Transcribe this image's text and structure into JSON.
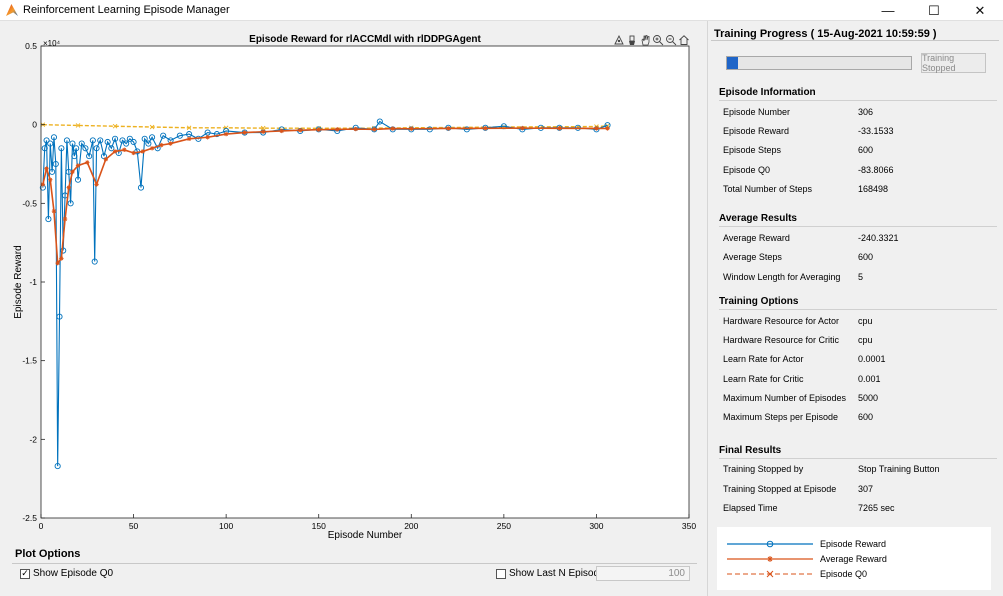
{
  "window": {
    "title": "Reinforcement Learning Episode Manager",
    "controls": {
      "minimize": "—",
      "maximize": "☐",
      "close": "✕"
    }
  },
  "plot": {
    "title": "Episode Reward for rlACCMdl with rlDDPGAgent",
    "exponent_label": "×10⁴",
    "xlabel": "Episode Number",
    "ylabel": "Episode Reward",
    "x_ticks": [
      "0",
      "50",
      "100",
      "150",
      "200",
      "250",
      "300",
      "350"
    ],
    "y_ticks": [
      "0.5",
      "0",
      "-0.5",
      "-1",
      "-1.5",
      "-2",
      "-2.5"
    ],
    "toolbar_icons": [
      "data-tips-icon",
      "brush-icon",
      "pan-icon",
      "zoom-in-icon",
      "zoom-out-icon",
      "home-icon"
    ],
    "colors": {
      "episode_reward": "#0072BD",
      "average_reward": "#D95319",
      "episode_q0": "#EDB120"
    }
  },
  "chart_data": {
    "type": "line",
    "title": "Episode Reward for rlACCMdl with rlDDPGAgent",
    "xlabel": "Episode Number",
    "ylabel": "Episode Reward",
    "xlim": [
      0,
      350
    ],
    "ylim": [
      -25000,
      5000
    ],
    "grid": false,
    "legend_placement": "bottom-right",
    "series": [
      {
        "name": "Episode Reward",
        "x": [
          1,
          2,
          3,
          4,
          5,
          6,
          7,
          8,
          9,
          10,
          11,
          12,
          13,
          14,
          15,
          16,
          17,
          18,
          19,
          20,
          22,
          24,
          26,
          28,
          29,
          30,
          32,
          34,
          36,
          38,
          40,
          42,
          44,
          46,
          48,
          50,
          52,
          54,
          56,
          58,
          60,
          63,
          66,
          70,
          75,
          80,
          85,
          90,
          95,
          100,
          110,
          120,
          130,
          140,
          150,
          160,
          170,
          180,
          183,
          190,
          200,
          210,
          220,
          230,
          240,
          250,
          260,
          270,
          280,
          290,
          300,
          306
        ],
        "y": [
          -4000,
          -1500,
          -1000,
          -6000,
          -1200,
          -3000,
          -800,
          -2500,
          -21700,
          -12200,
          -1500,
          -8000,
          -4500,
          -1000,
          -3000,
          -5000,
          -1200,
          -2000,
          -1500,
          -3500,
          -1200,
          -1500,
          -2000,
          -1000,
          -8700,
          -1500,
          -1000,
          -2000,
          -1100,
          -1500,
          -900,
          -1800,
          -1000,
          -1200,
          -900,
          -1100,
          -1700,
          -4000,
          -900,
          -1200,
          -800,
          -1500,
          -700,
          -1000,
          -700,
          -600,
          -900,
          -500,
          -600,
          -400,
          -500,
          -500,
          -300,
          -400,
          -300,
          -400,
          -200,
          -300,
          200,
          -300,
          -300,
          -300,
          -200,
          -300,
          -200,
          -100,
          -300,
          -200,
          -200,
          -200,
          -300,
          -33
        ]
      },
      {
        "name": "Average Reward",
        "x": [
          1,
          3,
          5,
          7,
          9,
          11,
          13,
          15,
          17,
          20,
          25,
          30,
          35,
          40,
          45,
          50,
          55,
          60,
          65,
          70,
          80,
          90,
          100,
          110,
          120,
          130,
          140,
          150,
          160,
          170,
          180,
          190,
          200,
          220,
          240,
          260,
          280,
          300,
          306
        ],
        "y": [
          -3800,
          -2800,
          -3500,
          -5500,
          -8800,
          -8500,
          -6000,
          -4000,
          -3000,
          -2600,
          -2400,
          -3800,
          -2200,
          -1700,
          -1600,
          -1800,
          -1700,
          -1500,
          -1300,
          -1200,
          -900,
          -800,
          -600,
          -500,
          -450,
          -400,
          -350,
          -320,
          -300,
          -280,
          -300,
          -250,
          -260,
          -240,
          -230,
          -220,
          -230,
          -240,
          -240
        ]
      },
      {
        "name": "Episode Q0",
        "x": [
          1,
          20,
          40,
          60,
          80,
          100,
          120,
          150,
          180,
          200,
          250,
          300,
          306
        ],
        "y": [
          0,
          -50,
          -100,
          -150,
          -200,
          -200,
          -220,
          -230,
          -220,
          -200,
          -150,
          -120,
          -84
        ]
      }
    ]
  },
  "plot_options": {
    "title": "Plot Options",
    "show_q0_label": "Show Episode Q0",
    "show_q0_checked": true,
    "show_last_n_label": "Show Last N Episodes",
    "show_last_n_checked": false,
    "last_n_value": "100"
  },
  "progress": {
    "title": "Training Progress ( 15-Aug-2021 10:59:59 )",
    "fraction": 0.0614,
    "button_label": "Training Stopped"
  },
  "episode_info": {
    "title": "Episode Information",
    "rows": [
      {
        "label": "Episode Number",
        "value": "306"
      },
      {
        "label": "Episode Reward",
        "value": "-33.1533"
      },
      {
        "label": "Episode Steps",
        "value": "600"
      },
      {
        "label": "Episode Q0",
        "value": "-83.8066"
      },
      {
        "label": "Total Number of Steps",
        "value": "168498"
      }
    ]
  },
  "average_results": {
    "title": "Average Results",
    "rows": [
      {
        "label": "Average Reward",
        "value": "-240.3321"
      },
      {
        "label": "Average Steps",
        "value": "600"
      },
      {
        "label": "Window Length for Averaging",
        "value": "5"
      }
    ]
  },
  "training_options": {
    "title": "Training Options",
    "rows": [
      {
        "label": "Hardware Resource for Actor",
        "value": "cpu"
      },
      {
        "label": "Hardware Resource for Critic",
        "value": "cpu"
      },
      {
        "label": "Learn Rate for Actor",
        "value": "0.0001"
      },
      {
        "label": "Learn Rate for Critic",
        "value": "0.001"
      },
      {
        "label": "Maximum Number of Episodes",
        "value": "5000"
      },
      {
        "label": "Maximum Steps per Episode",
        "value": "600"
      }
    ]
  },
  "final_results": {
    "title": "Final Results",
    "rows": [
      {
        "label": "Training Stopped by",
        "value": "Stop Training Button"
      },
      {
        "label": "Training Stopped at Episode",
        "value": "307"
      },
      {
        "label": "Elapsed Time",
        "value": "7265 sec"
      }
    ]
  },
  "legend": {
    "items": [
      {
        "label": "Episode Reward"
      },
      {
        "label": "Average Reward"
      },
      {
        "label": "Episode Q0"
      }
    ]
  }
}
